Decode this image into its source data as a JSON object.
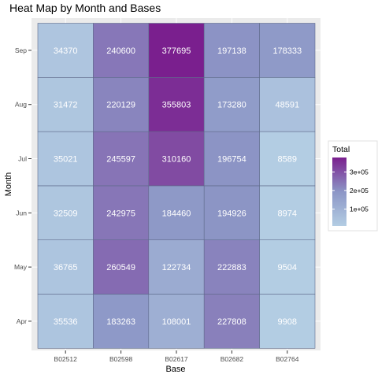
{
  "chart_data": {
    "type": "heatmap",
    "title": "Heat Map by Month and Bases",
    "xlabel": "Base",
    "ylabel": "Month",
    "x": [
      "B02512",
      "B02598",
      "B02617",
      "B02682",
      "B02764"
    ],
    "y": [
      "Apr",
      "May",
      "Jun",
      "Jul",
      "Aug",
      "Sep"
    ],
    "values": [
      [
        35536,
        183263,
        108001,
        227808,
        9908
      ],
      [
        36765,
        260549,
        122734,
        222883,
        9504
      ],
      [
        32509,
        242975,
        184460,
        194926,
        8974
      ],
      [
        35021,
        245597,
        310160,
        196754,
        8589
      ],
      [
        31472,
        220129,
        355803,
        173280,
        48591
      ],
      [
        34370,
        240600,
        377695,
        197138,
        178333
      ]
    ],
    "legend": {
      "title": "Total",
      "ticks": [
        100000,
        200000,
        300000
      ],
      "tick_labels": [
        "1e+05",
        "2e+05",
        "3e+05"
      ],
      "range": [
        8589,
        377695
      ],
      "placement": "right"
    },
    "colors": {
      "low": "#b3cde3",
      "mid": "#8c96c6",
      "high": "#7a1f8e",
      "panel_background": "#ebebeb",
      "tile_border": "#5e6a8a"
    },
    "grid": true
  }
}
